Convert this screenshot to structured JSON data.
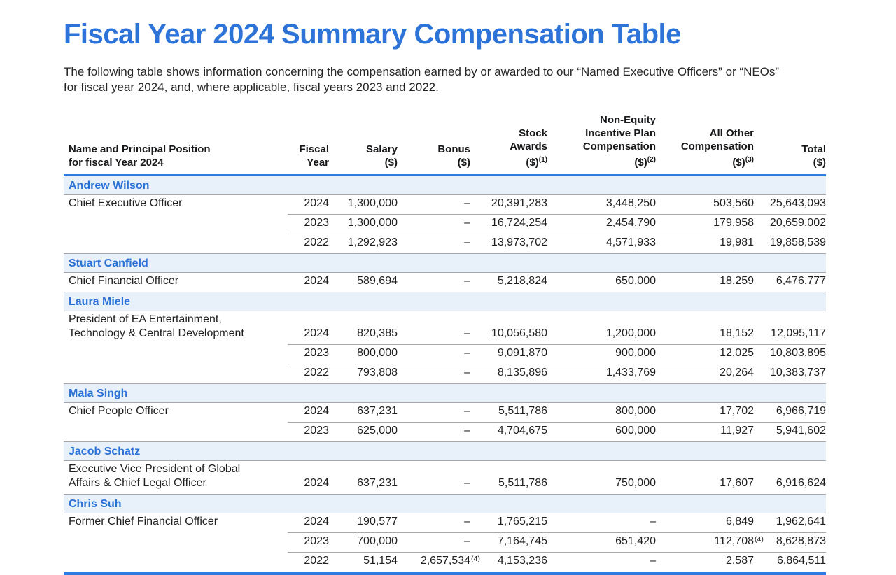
{
  "title": "Fiscal Year 2024 Summary Compensation Table",
  "intro": "The following table shows information concerning the compensation earned by or awarded to our “Named Executive Officers” or “NEOs”\nfor fiscal year 2024, and, where applicable, fiscal years 2023 and 2022.",
  "colors": {
    "title_blue": "#2e74d8",
    "name_blue": "#2b72d7",
    "rule_blue": "#2f7ce3",
    "band_background": "#e8f1fa",
    "separator_gray": "#a8a8ac",
    "body_text": "#202020"
  },
  "table": {
    "headers": [
      {
        "lines": "Name and Principal Position\nfor fiscal Year 2024",
        "sup": ""
      },
      {
        "lines": "Fiscal\nYear",
        "sup": ""
      },
      {
        "lines": "Salary\n($)",
        "sup": ""
      },
      {
        "lines": "Bonus\n($)",
        "sup": ""
      },
      {
        "lines": "Stock\nAwards\n($)",
        "sup": "(1)"
      },
      {
        "lines": "Non-Equity\nIncentive Plan\nCompensation\n($)",
        "sup": "(2)"
      },
      {
        "lines": "All Other\nCompensation\n($)",
        "sup": "(3)"
      },
      {
        "lines": "Total\n($)",
        "sup": ""
      }
    ],
    "sections": [
      {
        "name": "Andrew Wilson",
        "position": "Chief Executive Officer",
        "rows": [
          {
            "year": "2024",
            "salary": "1,300,000",
            "bonus": "–",
            "stock": "20,391,283",
            "neip": "3,448,250",
            "aoc": "503,560",
            "total": "25,643,093"
          },
          {
            "year": "2023",
            "salary": "1,300,000",
            "bonus": "–",
            "stock": "16,724,254",
            "neip": "2,454,790",
            "aoc": "179,958",
            "total": "20,659,002"
          },
          {
            "year": "2022",
            "salary": "1,292,923",
            "bonus": "–",
            "stock": "13,973,702",
            "neip": "4,571,933",
            "aoc": "19,981",
            "total": "19,858,539"
          }
        ]
      },
      {
        "name": "Stuart Canfield",
        "position": "Chief Financial Officer",
        "rows": [
          {
            "year": "2024",
            "salary": "589,694",
            "bonus": "–",
            "stock": "5,218,824",
            "neip": "650,000",
            "aoc": "18,259",
            "total": "6,476,777"
          }
        ]
      },
      {
        "name": "Laura Miele",
        "position": "President of EA Entertainment,\nTechnology & Central Development",
        "rows": [
          {
            "year": "2024",
            "salary": "820,385",
            "bonus": "–",
            "stock": "10,056,580",
            "neip": "1,200,000",
            "aoc": "18,152",
            "total": "12,095,117"
          },
          {
            "year": "2023",
            "salary": "800,000",
            "bonus": "–",
            "stock": "9,091,870",
            "neip": "900,000",
            "aoc": "12,025",
            "total": "10,803,895"
          },
          {
            "year": "2022",
            "salary": "793,808",
            "bonus": "–",
            "stock": "8,135,896",
            "neip": "1,433,769",
            "aoc": "20,264",
            "total": "10,383,737"
          }
        ]
      },
      {
        "name": "Mala Singh",
        "position": "Chief People Officer",
        "rows": [
          {
            "year": "2024",
            "salary": "637,231",
            "bonus": "–",
            "stock": "5,511,786",
            "neip": "800,000",
            "aoc": "17,702",
            "total": "6,966,719"
          },
          {
            "year": "2023",
            "salary": "625,000",
            "bonus": "–",
            "stock": "4,704,675",
            "neip": "600,000",
            "aoc": "11,927",
            "total": "5,941,602"
          }
        ]
      },
      {
        "name": "Jacob Schatz",
        "position": "Executive Vice President of Global\nAffairs & Chief Legal Officer",
        "rows": [
          {
            "year": "2024",
            "salary": "637,231",
            "bonus": "–",
            "stock": "5,511,786",
            "neip": "750,000",
            "aoc": "17,607",
            "total": "6,916,624"
          }
        ]
      },
      {
        "name": "Chris Suh",
        "position": "Former Chief Financial Officer",
        "rows": [
          {
            "year": "2024",
            "salary": "190,577",
            "bonus": "–",
            "stock": "1,765,215",
            "neip": "–",
            "aoc": "6,849",
            "total": "1,962,641"
          },
          {
            "year": "2023",
            "salary": "700,000",
            "bonus": "–",
            "stock": "7,164,745",
            "neip": "651,420",
            "aoc": "112,708",
            "aoc_sup": "(4)",
            "total": "8,628,873"
          },
          {
            "year": "2022",
            "salary": "51,154",
            "bonus": "2,657,534",
            "bonus_sup": "(4)",
            "stock": "4,153,236",
            "neip": "–",
            "aoc": "2,587",
            "total": "6,864,511"
          }
        ]
      }
    ]
  }
}
